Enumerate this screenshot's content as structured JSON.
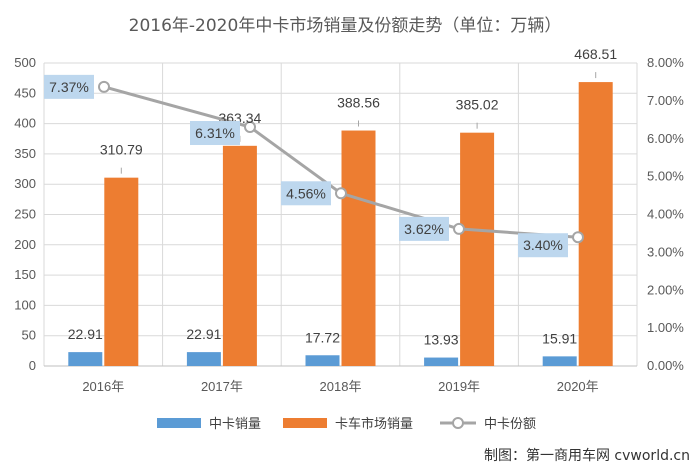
{
  "chart_data": {
    "type": "bar",
    "title": "2016年-2020年中卡市场销量及份额走势（单位：万辆）",
    "categories": [
      "2016年",
      "2017年",
      "2018年",
      "2019年",
      "2020年"
    ],
    "ylim": [
      0,
      500
    ],
    "yticks": [
      "0",
      "50",
      "100",
      "150",
      "200",
      "250",
      "300",
      "350",
      "400",
      "450",
      "500"
    ],
    "y2lim": [
      0,
      8
    ],
    "y2ticks": [
      "0.00%",
      "1.00%",
      "2.00%",
      "3.00%",
      "4.00%",
      "5.00%",
      "6.00%",
      "7.00%",
      "8.00%"
    ],
    "grid": true,
    "legend_position": "bottom",
    "series": [
      {
        "name": "中卡销量",
        "kind": "bar",
        "axis": "left",
        "color": "#5b9bd5",
        "values": [
          22.91,
          22.91,
          17.72,
          13.93,
          15.91
        ],
        "labels": [
          "22.91",
          "22.91",
          "17.72",
          "13.93",
          "15.91"
        ]
      },
      {
        "name": "卡车市场销量",
        "kind": "bar",
        "axis": "left",
        "color": "#ed7d31",
        "values": [
          310.79,
          363.34,
          388.56,
          385.02,
          468.51
        ],
        "labels": [
          "310.79",
          "363.34",
          "388.56",
          "385.02",
          "468.51"
        ]
      },
      {
        "name": "中卡份额",
        "kind": "line",
        "axis": "right",
        "color": "#a5a5a5",
        "values": [
          7.37,
          6.31,
          4.56,
          3.62,
          3.4
        ],
        "labels": [
          "7.37%",
          "6.31%",
          "4.56%",
          "3.62%",
          "3.40%"
        ]
      }
    ]
  },
  "watermark": "制图：第一商用车网 cvworld.cn"
}
